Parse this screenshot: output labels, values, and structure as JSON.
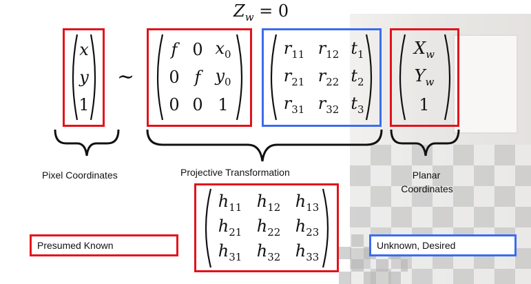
{
  "constraint": {
    "lhs": "Z",
    "sub": "w",
    "rhs": "= 0"
  },
  "pixel_vector": {
    "entries": [
      "x",
      "y",
      "1"
    ]
  },
  "relation_symbol": "∼",
  "intrinsic_matrix": {
    "rows": [
      [
        "f",
        "0",
        "x",
        "0"
      ],
      [
        "0",
        "f",
        "y",
        "0"
      ],
      [
        "0",
        "0",
        "1",
        ""
      ]
    ]
  },
  "extrinsic_matrix": {
    "rows": [
      [
        "r",
        "11",
        "r",
        "12",
        "t",
        "1"
      ],
      [
        "r",
        "21",
        "r",
        "22",
        "t",
        "2"
      ],
      [
        "r",
        "31",
        "r",
        "32",
        "t",
        "3"
      ]
    ]
  },
  "planar_vector": {
    "entries": [
      [
        "X",
        "w"
      ],
      [
        "Y",
        "w"
      ],
      [
        "1",
        ""
      ]
    ]
  },
  "homography_matrix": {
    "rows": [
      [
        "h",
        "11",
        "h",
        "12",
        "h",
        "13"
      ],
      [
        "h",
        "21",
        "h",
        "22",
        "h",
        "23"
      ],
      [
        "h",
        "31",
        "h",
        "32",
        "h",
        "33"
      ]
    ]
  },
  "labels": {
    "pixel": "Pixel Coordinates",
    "projective": "Projective Transformation",
    "planar_line1": "Planar",
    "planar_line2": "Coordinates"
  },
  "legend": {
    "known": "Presumed Known",
    "unknown": "Unknown, Desired"
  },
  "colors": {
    "known": "#e3111b",
    "unknown": "#3b6cf0"
  }
}
